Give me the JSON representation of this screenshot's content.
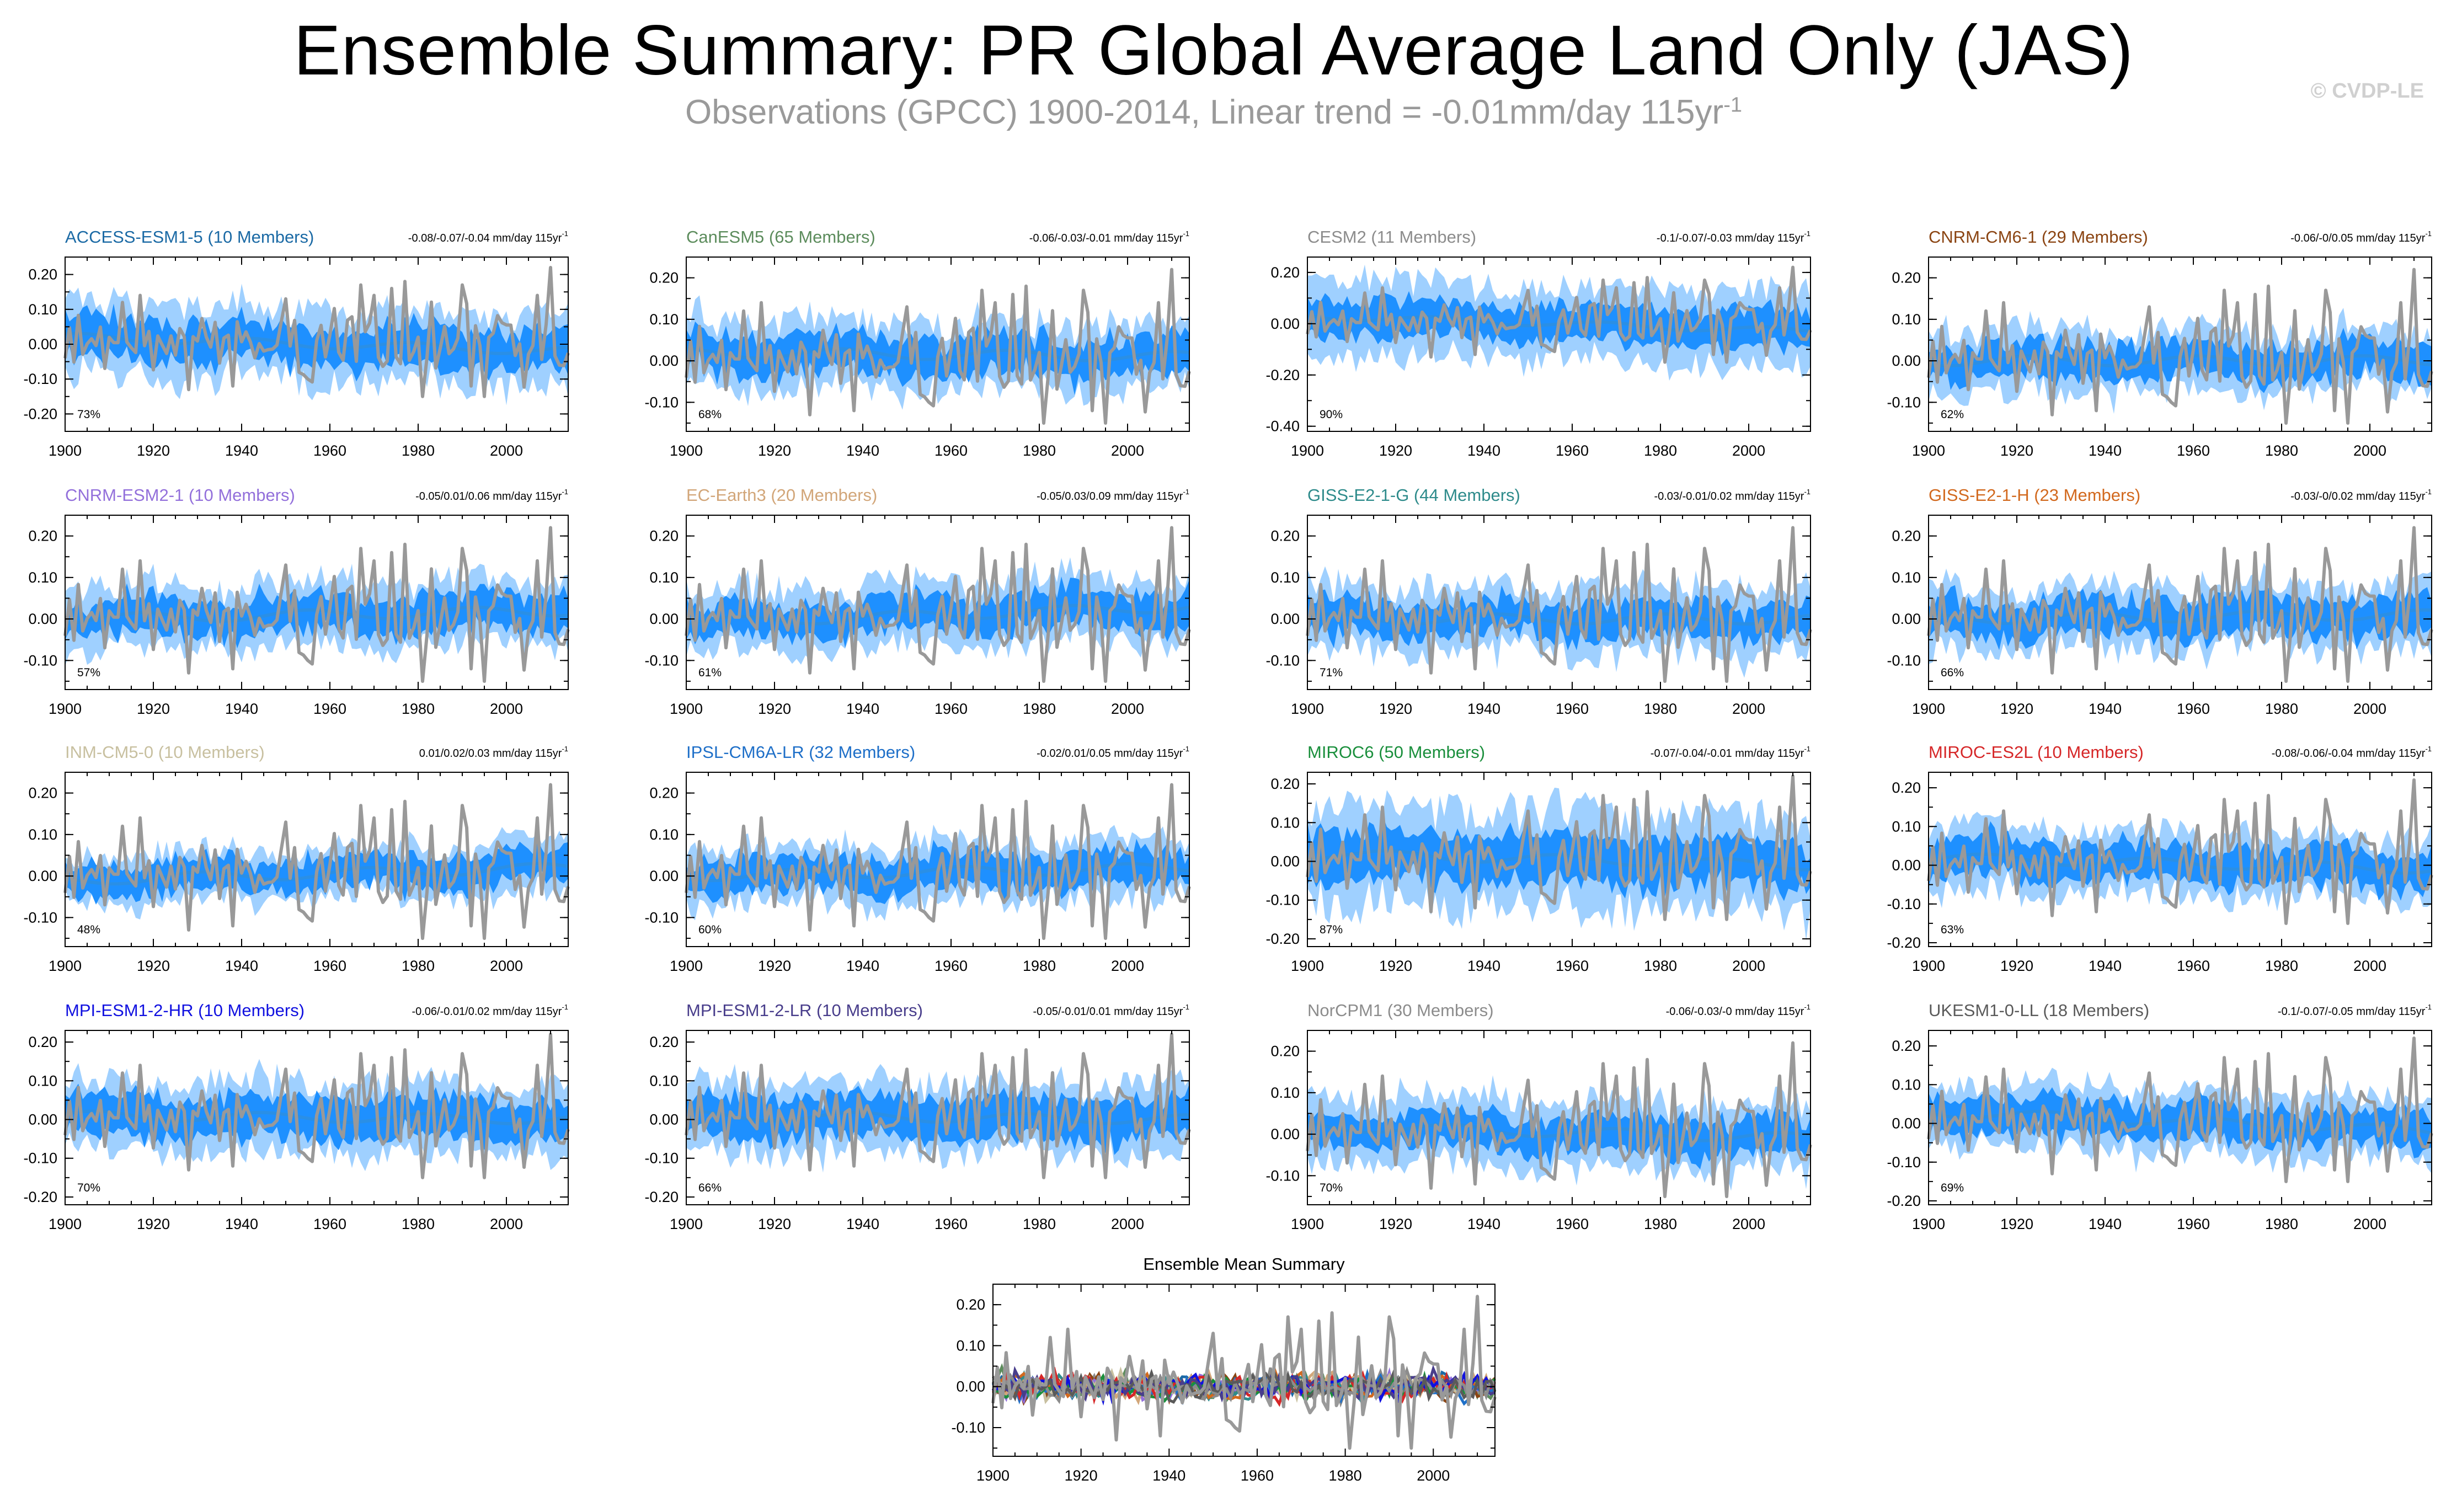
{
  "header": {
    "title": "Ensemble Summary: PR Global Average Land Only (JAS)",
    "subtitle_main": "Observations (GPCC) 1900-2014, Linear trend = -0.01mm/day 115yr",
    "subtitle_sup": "-1",
    "copyright": "© CVDP-LE"
  },
  "colors": {
    "observations": "#999999",
    "ensemble_mean": "#2a8fe6",
    "inner_band": "#1e90ff",
    "outer_band": "#9fd0ff",
    "axis": "#000000"
  },
  "chart_data": [
    {
      "type": "line",
      "title": "ACCESS-ESM1-5 (10 Members)",
      "title_color": "#1b6aa5",
      "trend": "-0.08/-0.07/-0.04 mm/day 115yr",
      "trend_sup": "-1",
      "percent": "73%",
      "ylim": [
        -0.25,
        0.25
      ],
      "yticks": [
        0.2,
        0.1,
        0,
        -0.1,
        -0.2
      ],
      "ytick_labels": [
        "0.20",
        "0.10",
        "0.00",
        "-0.10",
        "-0.20"
      ],
      "xlim": [
        1900,
        2014
      ],
      "xticks": [
        1900,
        1920,
        1940,
        1960,
        1980,
        2000
      ],
      "xtick_labels": [
        "1900",
        "1920",
        "1940",
        "1960",
        "1980",
        "2000"
      ],
      "outer_halfwidth": 0.1,
      "inner_halfwidth": 0.055,
      "mean_trend": [
        0.02,
        -0.02
      ],
      "seed": 1
    },
    {
      "type": "line",
      "title": "CanESM5 (65 Members)",
      "title_color": "#5c8c5c",
      "trend": "-0.06/-0.03/-0.01 mm/day 115yr",
      "trend_sup": "-1",
      "percent": "68%",
      "ylim": [
        -0.17,
        0.25
      ],
      "yticks": [
        0.2,
        0.1,
        0,
        -0.1
      ],
      "ytick_labels": [
        "0.20",
        "0.10",
        "0.00",
        "-0.10"
      ],
      "xlim": [
        1900,
        2014
      ],
      "xticks": [
        1900,
        1920,
        1940,
        1960,
        1980,
        2000
      ],
      "xtick_labels": [
        "1900",
        "1920",
        "1940",
        "1960",
        "1980",
        "2000"
      ],
      "outer_halfwidth": 0.08,
      "inner_halfwidth": 0.045,
      "mean_trend": [
        0.02,
        0.01
      ],
      "seed": 2
    },
    {
      "type": "line",
      "title": "CESM2 (11 Members)",
      "title_color": "#8c8c8c",
      "trend": "-0.1/-0.07/-0.03 mm/day 115yr",
      "trend_sup": "-1",
      "percent": "90%",
      "ylim": [
        -0.42,
        0.26
      ],
      "yticks": [
        0.2,
        0,
        -0.2,
        -0.4
      ],
      "ytick_labels": [
        "0.20",
        "0.00",
        "-0.20",
        "-0.40"
      ],
      "xlim": [
        1900,
        2014
      ],
      "xticks": [
        1900,
        1920,
        1940,
        1960,
        1980,
        2000
      ],
      "xtick_labels": [
        "1900",
        "1920",
        "1940",
        "1960",
        "1980",
        "2000"
      ],
      "outer_halfwidth": 0.14,
      "inner_halfwidth": 0.07,
      "mean_trend": [
        0.03,
        -0.03
      ],
      "seed": 3
    },
    {
      "type": "line",
      "title": "CNRM-CM6-1 (29 Members)",
      "title_color": "#8b4513",
      "trend": "-0.06/-0/0.05 mm/day 115yr",
      "trend_sup": "-1",
      "percent": "62%",
      "ylim": [
        -0.17,
        0.25
      ],
      "yticks": [
        0.2,
        0.1,
        0,
        -0.1
      ],
      "ytick_labels": [
        "0.20",
        "0.10",
        "0.00",
        "-0.10"
      ],
      "xlim": [
        1900,
        2014
      ],
      "xticks": [
        1900,
        1920,
        1940,
        1960,
        1980,
        2000
      ],
      "xtick_labels": [
        "1900",
        "1920",
        "1940",
        "1960",
        "1980",
        "2000"
      ],
      "outer_halfwidth": 0.075,
      "inner_halfwidth": 0.04,
      "mean_trend": [
        0.0,
        0.0
      ],
      "seed": 4
    },
    {
      "type": "line",
      "title": "CNRM-ESM2-1 (10 Members)",
      "title_color": "#9370db",
      "trend": "-0.05/0.01/0.06 mm/day 115yr",
      "trend_sup": "-1",
      "percent": "57%",
      "ylim": [
        -0.17,
        0.25
      ],
      "yticks": [
        0.2,
        0.1,
        0,
        -0.1
      ],
      "ytick_labels": [
        "0.20",
        "0.10",
        "0.00",
        "-0.10"
      ],
      "xlim": [
        1900,
        2014
      ],
      "xticks": [
        1900,
        1920,
        1940,
        1960,
        1980,
        2000
      ],
      "xtick_labels": [
        "1900",
        "1920",
        "1940",
        "1960",
        "1980",
        "2000"
      ],
      "outer_halfwidth": 0.075,
      "inner_halfwidth": 0.04,
      "mean_trend": [
        0.0,
        0.02
      ],
      "seed": 5
    },
    {
      "type": "line",
      "title": "EC-Earth3 (20 Members)",
      "title_color": "#d2a679",
      "trend": "-0.05/0.03/0.09 mm/day 115yr",
      "trend_sup": "-1",
      "percent": "61%",
      "ylim": [
        -0.17,
        0.25
      ],
      "yticks": [
        0.2,
        0.1,
        0,
        -0.1
      ],
      "ytick_labels": [
        "0.20",
        "0.10",
        "0.00",
        "-0.10"
      ],
      "xlim": [
        1900,
        2014
      ],
      "xticks": [
        1900,
        1920,
        1940,
        1960,
        1980,
        2000
      ],
      "xtick_labels": [
        "1900",
        "1920",
        "1940",
        "1960",
        "1980",
        "2000"
      ],
      "outer_halfwidth": 0.075,
      "inner_halfwidth": 0.04,
      "mean_trend": [
        -0.01,
        0.03
      ],
      "seed": 6
    },
    {
      "type": "line",
      "title": "GISS-E2-1-G (44 Members)",
      "title_color": "#2e8b8b",
      "trend": "-0.03/-0.01/0.02 mm/day 115yr",
      "trend_sup": "-1",
      "percent": "71%",
      "ylim": [
        -0.17,
        0.25
      ],
      "yticks": [
        0.2,
        0.1,
        0,
        -0.1
      ],
      "ytick_labels": [
        "0.20",
        "0.10",
        "0.00",
        "-0.10"
      ],
      "xlim": [
        1900,
        2014
      ],
      "xticks": [
        1900,
        1920,
        1940,
        1960,
        1980,
        2000
      ],
      "xtick_labels": [
        "1900",
        "1920",
        "1940",
        "1960",
        "1980",
        "2000"
      ],
      "outer_halfwidth": 0.08,
      "inner_halfwidth": 0.04,
      "mean_trend": [
        0.0,
        0.0
      ],
      "seed": 7
    },
    {
      "type": "line",
      "title": "GISS-E2-1-H (23 Members)",
      "title_color": "#d2691e",
      "trend": "-0.03/-0/0.02 mm/day 115yr",
      "trend_sup": "-1",
      "percent": "66%",
      "ylim": [
        -0.17,
        0.25
      ],
      "yticks": [
        0.2,
        0.1,
        0,
        -0.1
      ],
      "ytick_labels": [
        "0.20",
        "0.10",
        "0.00",
        "-0.10"
      ],
      "xlim": [
        1900,
        2014
      ],
      "xticks": [
        1900,
        1920,
        1940,
        1960,
        1980,
        2000
      ],
      "xtick_labels": [
        "1900",
        "1920",
        "1940",
        "1960",
        "1980",
        "2000"
      ],
      "outer_halfwidth": 0.075,
      "inner_halfwidth": 0.04,
      "mean_trend": [
        0.0,
        0.01
      ],
      "seed": 8
    },
    {
      "type": "line",
      "title": "INM-CM5-0 (10 Members)",
      "title_color": "#c8c0a0",
      "trend": "0.01/0.02/0.03 mm/day 115yr",
      "trend_sup": "-1",
      "percent": "48%",
      "ylim": [
        -0.17,
        0.25
      ],
      "yticks": [
        0.2,
        0.1,
        0,
        -0.1
      ],
      "ytick_labels": [
        "0.20",
        "0.10",
        "0.00",
        "-0.10"
      ],
      "xlim": [
        1900,
        2014
      ],
      "xticks": [
        1900,
        1920,
        1940,
        1960,
        1980,
        2000
      ],
      "xtick_labels": [
        "1900",
        "1920",
        "1940",
        "1960",
        "1980",
        "2000"
      ],
      "outer_halfwidth": 0.06,
      "inner_halfwidth": 0.035,
      "mean_trend": [
        -0.01,
        0.02
      ],
      "seed": 9
    },
    {
      "type": "line",
      "title": "IPSL-CM6A-LR (32 Members)",
      "title_color": "#1e6fc8",
      "trend": "-0.02/0.01/0.05 mm/day 115yr",
      "trend_sup": "-1",
      "percent": "60%",
      "ylim": [
        -0.17,
        0.25
      ],
      "yticks": [
        0.2,
        0.1,
        0,
        -0.1
      ],
      "ytick_labels": [
        "0.20",
        "0.10",
        "0.00",
        "-0.10"
      ],
      "xlim": [
        1900,
        2014
      ],
      "xticks": [
        1900,
        1920,
        1940,
        1960,
        1980,
        2000
      ],
      "xtick_labels": [
        "1900",
        "1920",
        "1940",
        "1960",
        "1980",
        "2000"
      ],
      "outer_halfwidth": 0.07,
      "inner_halfwidth": 0.038,
      "mean_trend": [
        0.0,
        0.02
      ],
      "seed": 10
    },
    {
      "type": "line",
      "title": "MIROC6 (50 Members)",
      "title_color": "#1a8f3c",
      "trend": "-0.07/-0.04/-0.01 mm/day 115yr",
      "trend_sup": "-1",
      "percent": "87%",
      "ylim": [
        -0.22,
        0.23
      ],
      "yticks": [
        0.2,
        0.1,
        0,
        -0.1,
        -0.2
      ],
      "ytick_labels": [
        "0.20",
        "0.10",
        "0.00",
        "-0.10",
        "-0.20"
      ],
      "xlim": [
        1900,
        2014
      ],
      "xticks": [
        1900,
        1920,
        1940,
        1960,
        1980,
        2000
      ],
      "xtick_labels": [
        "1900",
        "1920",
        "1940",
        "1960",
        "1980",
        "2000"
      ],
      "outer_halfwidth": 0.12,
      "inner_halfwidth": 0.06,
      "mean_trend": [
        0.02,
        -0.01
      ],
      "seed": 11
    },
    {
      "type": "line",
      "title": "MIROC-ES2L (10 Members)",
      "title_color": "#d62728",
      "trend": "-0.08/-0.06/-0.04 mm/day 115yr",
      "trend_sup": "-1",
      "percent": "63%",
      "ylim": [
        -0.21,
        0.24
      ],
      "yticks": [
        0.2,
        0.1,
        0,
        -0.1,
        -0.2
      ],
      "ytick_labels": [
        "0.20",
        "0.10",
        "0.00",
        "-0.10",
        "-0.20"
      ],
      "xlim": [
        1900,
        2014
      ],
      "xticks": [
        1900,
        1920,
        1940,
        1960,
        1980,
        2000
      ],
      "xtick_labels": [
        "1900",
        "1920",
        "1940",
        "1960",
        "1980",
        "2000"
      ],
      "outer_halfwidth": 0.08,
      "inner_halfwidth": 0.045,
      "mean_trend": [
        0.02,
        -0.01
      ],
      "seed": 12
    },
    {
      "type": "line",
      "title": "MPI-ESM1-2-HR (10 Members)",
      "title_color": "#1010e0",
      "trend": "-0.06/-0.01/0.02 mm/day 115yr",
      "trend_sup": "-1",
      "percent": "70%",
      "ylim": [
        -0.22,
        0.23
      ],
      "yticks": [
        0.2,
        0.1,
        0,
        -0.1,
        -0.2
      ],
      "ytick_labels": [
        "0.20",
        "0.10",
        "0.00",
        "-0.10",
        "-0.20"
      ],
      "xlim": [
        1900,
        2014
      ],
      "xticks": [
        1900,
        1920,
        1940,
        1960,
        1980,
        2000
      ],
      "xtick_labels": [
        "1900",
        "1920",
        "1940",
        "1960",
        "1980",
        "2000"
      ],
      "outer_halfwidth": 0.09,
      "inner_halfwidth": 0.05,
      "mean_trend": [
        0.01,
        0.0
      ],
      "seed": 13
    },
    {
      "type": "line",
      "title": "MPI-ESM1-2-LR (10 Members)",
      "title_color": "#483d8b",
      "trend": "-0.05/-0.01/0.01 mm/day 115yr",
      "trend_sup": "-1",
      "percent": "66%",
      "ylim": [
        -0.22,
        0.23
      ],
      "yticks": [
        0.2,
        0.1,
        0,
        -0.1,
        -0.2
      ],
      "ytick_labels": [
        "0.20",
        "0.10",
        "0.00",
        "-0.10",
        "-0.20"
      ],
      "xlim": [
        1900,
        2014
      ],
      "xticks": [
        1900,
        1920,
        1940,
        1960,
        1980,
        2000
      ],
      "xtick_labels": [
        "1900",
        "1920",
        "1940",
        "1960",
        "1980",
        "2000"
      ],
      "outer_halfwidth": 0.09,
      "inner_halfwidth": 0.05,
      "mean_trend": [
        0.01,
        0.0
      ],
      "seed": 14
    },
    {
      "type": "line",
      "title": "NorCPM1 (30 Members)",
      "title_color": "#8c8c8c",
      "trend": "-0.06/-0.03/-0 mm/day 115yr",
      "trend_sup": "-1",
      "percent": "70%",
      "ylim": [
        -0.17,
        0.25
      ],
      "yticks": [
        0.2,
        0.1,
        0,
        -0.1
      ],
      "ytick_labels": [
        "0.20",
        "0.10",
        "0.00",
        "-0.10"
      ],
      "xlim": [
        1900,
        2014
      ],
      "xticks": [
        1900,
        1920,
        1940,
        1960,
        1980,
        2000
      ],
      "xtick_labels": [
        "1900",
        "1920",
        "1940",
        "1960",
        "1980",
        "2000"
      ],
      "outer_halfwidth": 0.08,
      "inner_halfwidth": 0.04,
      "mean_trend": [
        0.02,
        -0.01
      ],
      "seed": 15
    },
    {
      "type": "line",
      "title": "UKESM1-0-LL (18 Members)",
      "title_color": "#5a5a5a",
      "trend": "-0.1/-0.07/-0.05 mm/day 115yr",
      "trend_sup": "-1",
      "percent": "69%",
      "ylim": [
        -0.21,
        0.24
      ],
      "yticks": [
        0.2,
        0.1,
        0,
        -0.1,
        -0.2
      ],
      "ytick_labels": [
        "0.20",
        "0.10",
        "0.00",
        "-0.10",
        "-0.20"
      ],
      "xlim": [
        1900,
        2014
      ],
      "xticks": [
        1900,
        1920,
        1940,
        1960,
        1980,
        2000
      ],
      "xtick_labels": [
        "1900",
        "1920",
        "1940",
        "1960",
        "1980",
        "2000"
      ],
      "outer_halfwidth": 0.08,
      "inner_halfwidth": 0.045,
      "mean_trend": [
        0.03,
        -0.02
      ],
      "seed": 16
    },
    {
      "type": "line",
      "title": "Ensemble Mean Summary",
      "title_color": "#000000",
      "trend": "",
      "trend_sup": "",
      "percent": "",
      "ylim": [
        -0.17,
        0.25
      ],
      "yticks": [
        0.2,
        0.1,
        0,
        -0.1
      ],
      "ytick_labels": [
        "0.20",
        "0.10",
        "0.00",
        "-0.10"
      ],
      "xlim": [
        1900,
        2014
      ],
      "xticks": [
        1900,
        1920,
        1940,
        1960,
        1980,
        2000
      ],
      "xtick_labels": [
        "1900",
        "1920",
        "1940",
        "1960",
        "1980",
        "2000"
      ],
      "is_summary": true,
      "series_colors": [
        "#1b6aa5",
        "#5c8c5c",
        "#8c8c8c",
        "#8b4513",
        "#9370db",
        "#d2a679",
        "#2e8b8b",
        "#d2691e",
        "#c8c0a0",
        "#1e6fc8",
        "#1a8f3c",
        "#d62728",
        "#1010e0",
        "#483d8b",
        "#8c8c8c",
        "#5a5a5a"
      ],
      "seed": 17
    }
  ]
}
